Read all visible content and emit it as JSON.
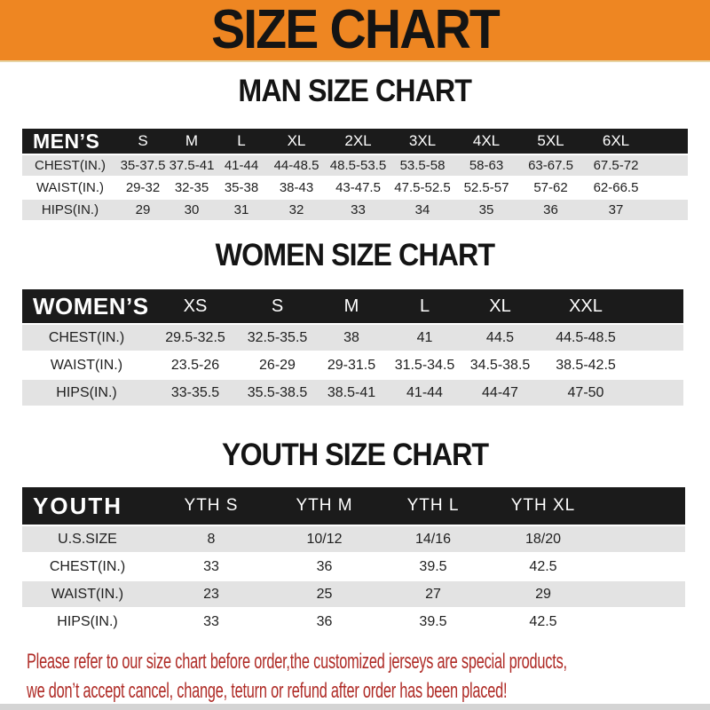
{
  "banner": {
    "title": "SIZE CHART"
  },
  "colors": {
    "banner_bg": "#EE8622",
    "header_bar_bg": "#1B1B1B",
    "alt_row_bg": "#E3E3E3",
    "footer_text": "#AF2B26"
  },
  "sections": [
    {
      "heading": "MAN SIZE CHART",
      "header_label": "MEN’S",
      "columns": [
        "S",
        "M",
        "L",
        "XL",
        "2XL",
        "3XL",
        "4XL",
        "5XL",
        "6XL"
      ],
      "rows": [
        {
          "label": "CHEST(IN.)",
          "values": [
            "35-37.5",
            "37.5-41",
            "41-44",
            "44-48.5",
            "48.5-53.5",
            "53.5-58",
            "58-63",
            "63-67.5",
            "67.5-72"
          ]
        },
        {
          "label": "WAIST(IN.)",
          "values": [
            "29-32",
            "32-35",
            "35-38",
            "38-43",
            "43-47.5",
            "47.5-52.5",
            "52.5-57",
            "57-62",
            "62-66.5"
          ]
        },
        {
          "label": "HIPS(IN.)",
          "values": [
            "29",
            "30",
            "31",
            "32",
            "33",
            "34",
            "35",
            "36",
            "37"
          ]
        }
      ]
    },
    {
      "heading": "WOMEN SIZE CHART",
      "header_label": "WOMEN’S",
      "columns": [
        "XS",
        "S",
        "M",
        "L",
        "XL",
        "XXL"
      ],
      "rows": [
        {
          "label": "CHEST(IN.)",
          "values": [
            "29.5-32.5",
            "32.5-35.5",
            "38",
            "41",
            "44.5",
            "44.5-48.5"
          ]
        },
        {
          "label": "WAIST(IN.)",
          "values": [
            "23.5-26",
            "26-29",
            "29-31.5",
            "31.5-34.5",
            "34.5-38.5",
            "38.5-42.5"
          ]
        },
        {
          "label": "HIPS(IN.)",
          "values": [
            "33-35.5",
            "35.5-38.5",
            "38.5-41",
            "41-44",
            "44-47",
            "47-50"
          ]
        }
      ]
    },
    {
      "heading": "YOUTH SIZE CHART",
      "header_label": "YOUTH",
      "columns": [
        "YTH S",
        "YTH M",
        "YTH L",
        "YTH XL"
      ],
      "rows": [
        {
          "label": "U.S.SIZE",
          "values": [
            "8",
            "10/12",
            "14/16",
            "18/20"
          ]
        },
        {
          "label": "CHEST(IN.)",
          "values": [
            "33",
            "36",
            "39.5",
            "42.5"
          ]
        },
        {
          "label": "WAIST(IN.)",
          "values": [
            "23",
            "25",
            "27",
            "29"
          ]
        },
        {
          "label": "HIPS(IN.)",
          "values": [
            "33",
            "36",
            "39.5",
            "42.5"
          ]
        }
      ]
    }
  ],
  "footer": {
    "lines": [
      "Please refer to our size chart before order,the customized jerseys are special products,",
      "we don’t accept cancel, change, teturn or refund after order has been placed!"
    ]
  }
}
